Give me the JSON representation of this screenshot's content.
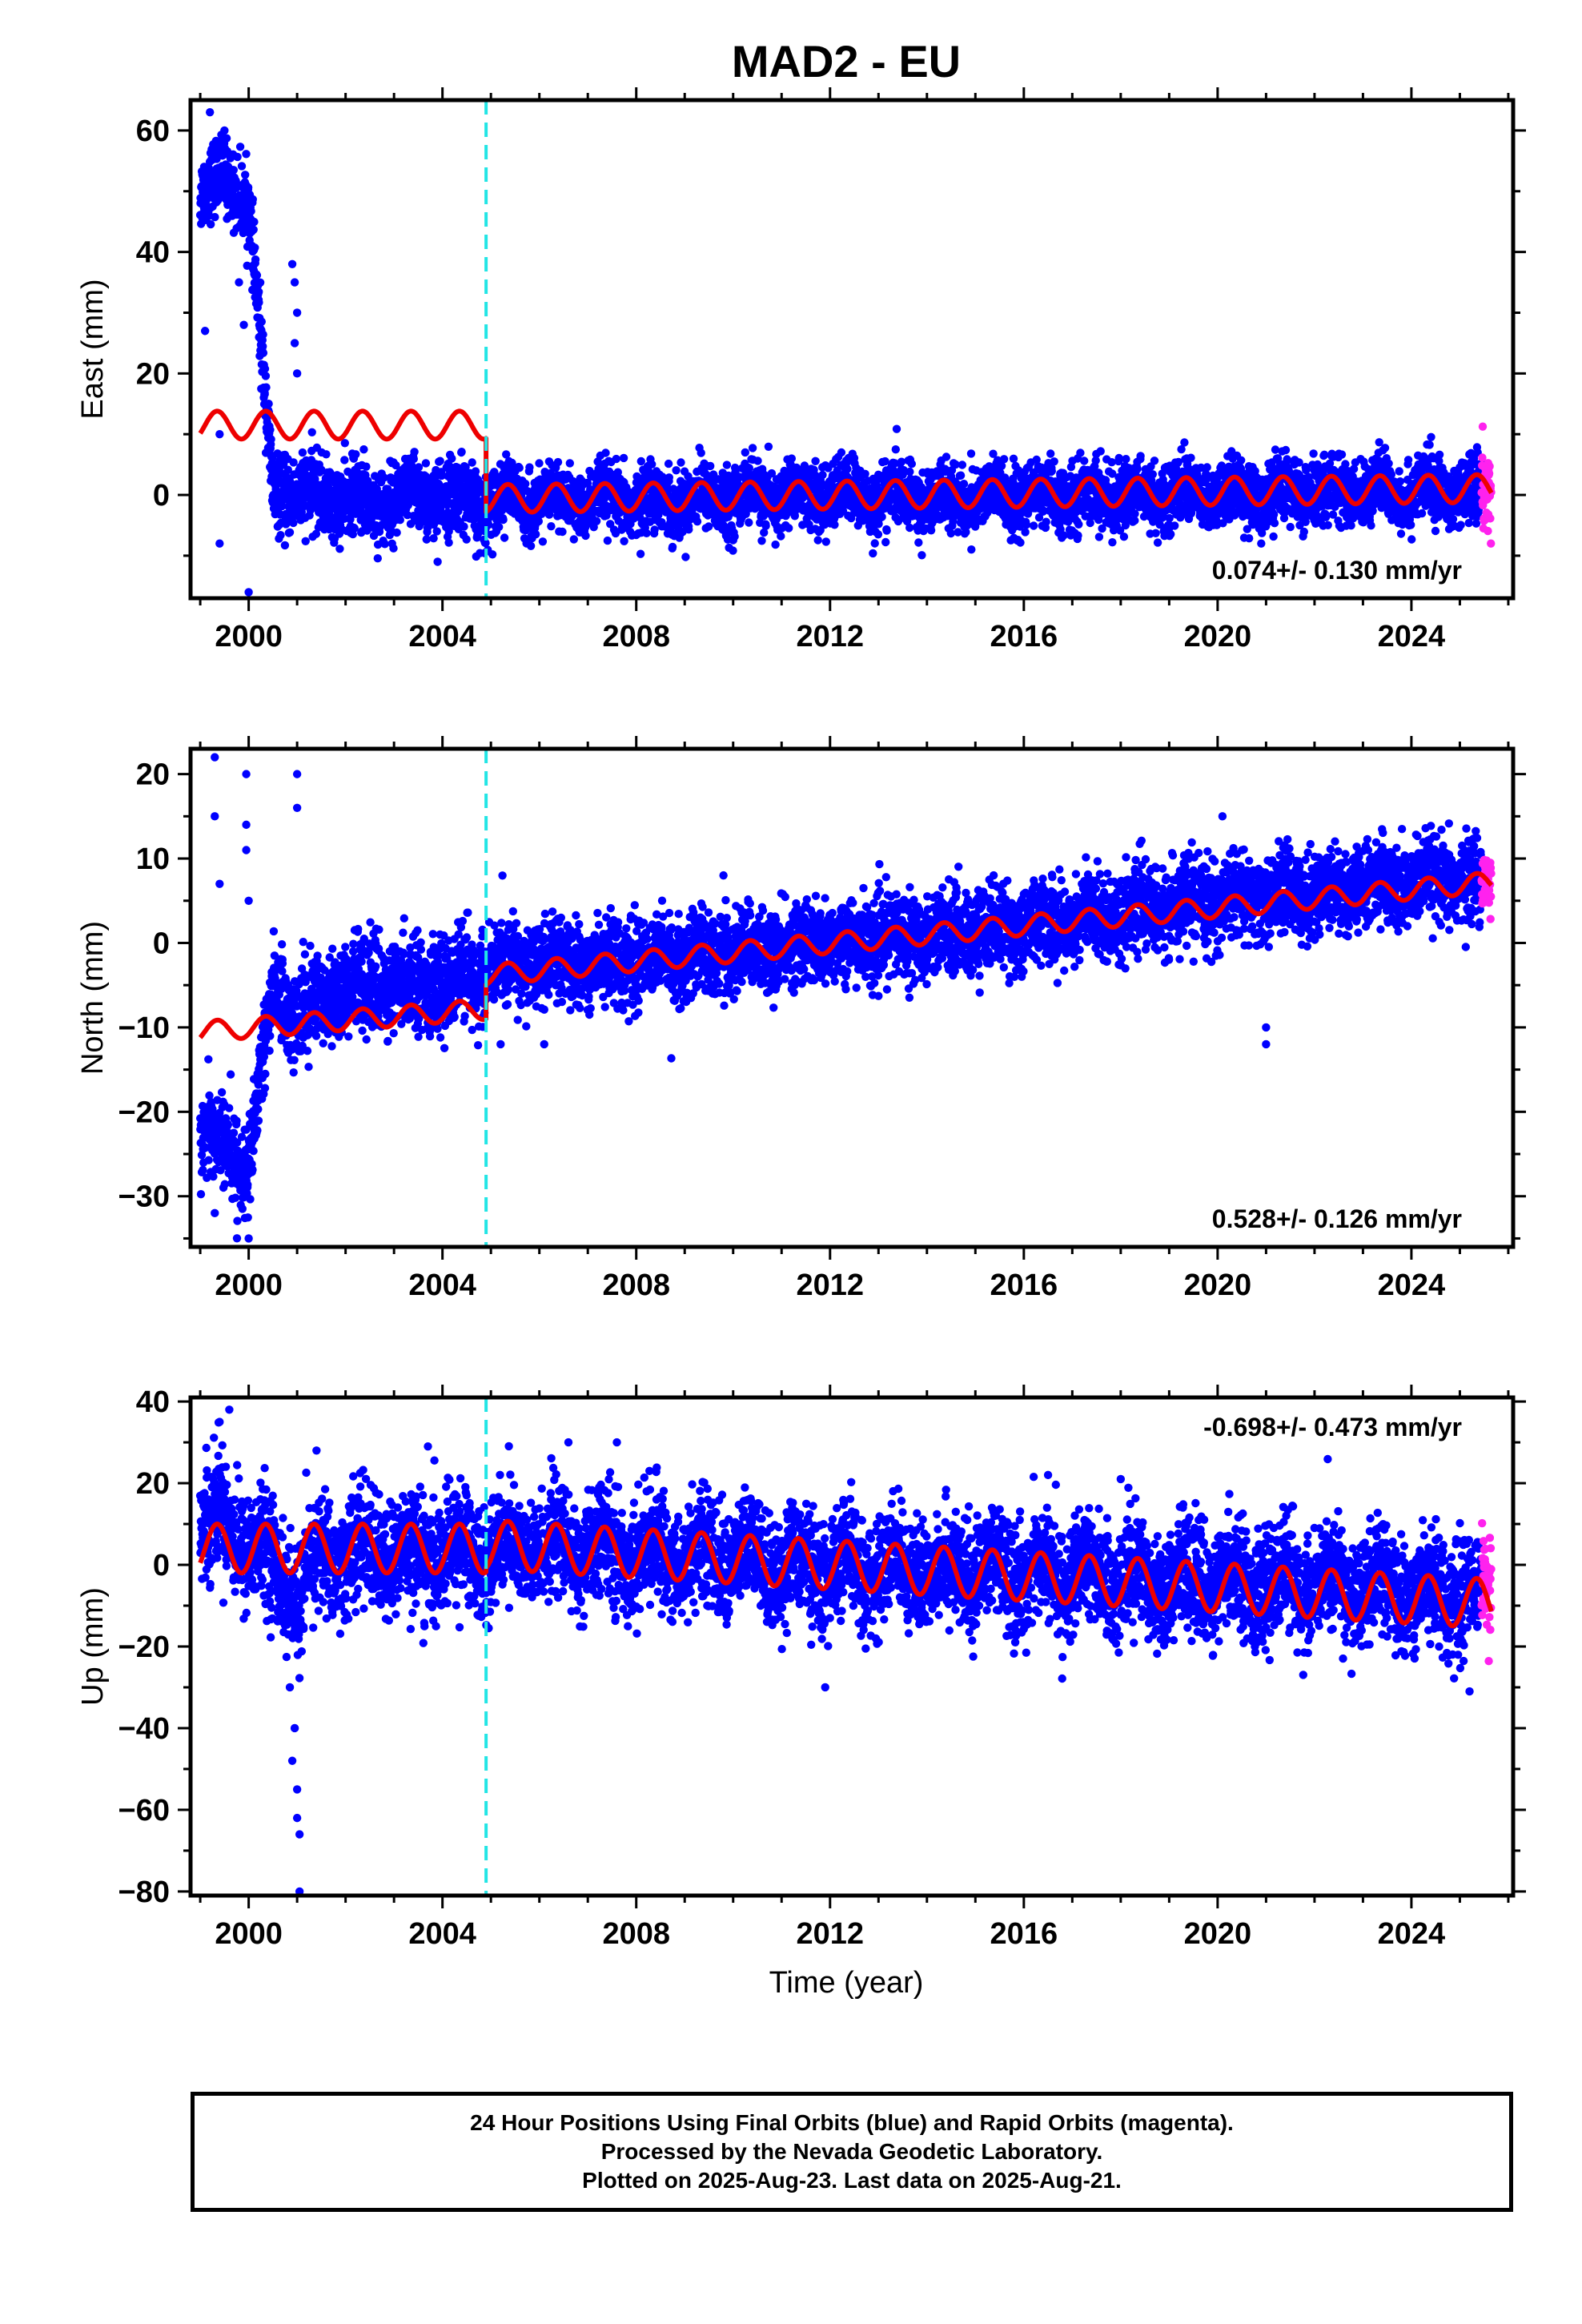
{
  "title": "MAD2 - EU",
  "xlabel": "Time (year)",
  "colors": {
    "final": "#0000ff",
    "rapid": "#ff22ee",
    "model": "#ee0000",
    "vline": "#22e5e5"
  },
  "footer": {
    "line1": "24 Hour Positions Using Final Orbits (blue) and Rapid Orbits (magenta).",
    "line2": "Processed by the Nevada Geodetic Laboratory.",
    "line3": "Plotted on 2025-Aug-23. Last data on 2025-Aug-21."
  },
  "chart_data": [
    {
      "type": "scatter",
      "title": "MAD2 - EU",
      "ylabel": "East (mm)",
      "xlim": [
        1998.8,
        2026.1
      ],
      "ylim": [
        -17,
        65
      ],
      "x_ticks": [
        2000,
        2004,
        2008,
        2012,
        2016,
        2020,
        2024
      ],
      "y_ticks": [
        0,
        20,
        40,
        60
      ],
      "event_line_x": 2004.9,
      "rate_label": "0.074+/- 0.130 mm/yr",
      "rate_position": "bottom-right",
      "segments": [
        {
          "x": [
            1999.0,
            1999.5,
            2000.0,
            2000.5,
            2001.0,
            2001.5,
            2002.0,
            2002.5,
            2003.0,
            2003.5,
            2004.0,
            2004.5,
            2004.9
          ],
          "y": [
            50,
            52,
            49,
            0,
            1,
            -1,
            0,
            -2,
            0,
            -1,
            0,
            -1,
            -2
          ],
          "spread": 3
        },
        {
          "x": [
            2004.9,
            2006,
            2008,
            2010,
            2012,
            2014,
            2016,
            2018,
            2020,
            2022,
            2024,
            2025.45
          ],
          "y": [
            -0.5,
            -1,
            -1,
            -0.5,
            0,
            -0.5,
            -0.5,
            0,
            0,
            0.5,
            0.5,
            0.5
          ],
          "spread": 2.6
        }
      ],
      "outliers": [
        {
          "x": 2000.9,
          "y": 38
        },
        {
          "x": 2000.95,
          "y": 35
        },
        {
          "x": 2001.0,
          "y": 30
        },
        {
          "x": 2000.95,
          "y": 25
        },
        {
          "x": 2001.0,
          "y": 20
        },
        {
          "x": 1999.1,
          "y": 27
        },
        {
          "x": 1999.2,
          "y": 63
        },
        {
          "x": 1999.5,
          "y": 60
        },
        {
          "x": 1999.9,
          "y": 28
        },
        {
          "x": 1999.8,
          "y": 35
        },
        {
          "x": 1999.4,
          "y": 10
        },
        {
          "x": 1999.4,
          "y": -8
        },
        {
          "x": 2000.0,
          "y": -16
        },
        {
          "x": 2003.9,
          "y": -11
        },
        {
          "x": 2020.9,
          "y": -8
        }
      ],
      "rapid": {
        "x_start": 2025.45,
        "x_end": 2025.65,
        "y_center": 0,
        "spread": 4,
        "count": 45
      },
      "model": {
        "segments": [
          {
            "x_start": 1999.0,
            "x_end": 2004.9,
            "offset": 11.5,
            "slope": 0,
            "amplitude": 2.3
          },
          {
            "x_start": 2004.9,
            "x_end": 2025.65,
            "offset": -0.6,
            "slope": 0.08,
            "amplitude": 2.3
          }
        ]
      }
    },
    {
      "type": "scatter",
      "ylabel": "North (mm)",
      "xlim": [
        1998.8,
        2026.1
      ],
      "ylim": [
        -36,
        23
      ],
      "x_ticks": [
        2000,
        2004,
        2008,
        2012,
        2016,
        2020,
        2024
      ],
      "y_ticks": [
        -30,
        -20,
        -10,
        0,
        10,
        20
      ],
      "event_line_x": 2004.9,
      "rate_label": "0.528+/- 0.126 mm/yr",
      "rate_position": "bottom-right",
      "segments": [
        {
          "x": [
            1999.0,
            1999.5,
            2000.0,
            2000.5,
            2001.0,
            2001.5,
            2002.0,
            2002.5,
            2003.0,
            2003.5,
            2004.0,
            2004.5,
            2004.9
          ],
          "y": [
            -22,
            -24,
            -27,
            -5,
            -9,
            -6,
            -5,
            -5,
            -5,
            -5,
            -5,
            -4,
            -4
          ],
          "spread": 2.6
        },
        {
          "x": [
            2004.9,
            2006,
            2008,
            2010,
            2012,
            2014,
            2016,
            2018,
            2020,
            2022,
            2024,
            2025.45
          ],
          "y": [
            -3,
            -2.5,
            -2,
            -1,
            0,
            1,
            2,
            3.5,
            5,
            6,
            7,
            7.5
          ],
          "spread": 2.4
        }
      ],
      "outliers": [
        {
          "x": 1999.3,
          "y": 22
        },
        {
          "x": 1999.95,
          "y": 20
        },
        {
          "x": 2001.0,
          "y": 20
        },
        {
          "x": 1999.3,
          "y": 15
        },
        {
          "x": 1999.95,
          "y": 14
        },
        {
          "x": 1999.4,
          "y": 7
        },
        {
          "x": 1999.95,
          "y": 11
        },
        {
          "x": 2001.0,
          "y": 16
        },
        {
          "x": 2000.0,
          "y": 5
        },
        {
          "x": 2009.8,
          "y": 8
        },
        {
          "x": 2020.1,
          "y": 15
        },
        {
          "x": 2021.0,
          "y": -10
        },
        {
          "x": 2021.0,
          "y": -12
        },
        {
          "x": 2000.0,
          "y": -35
        },
        {
          "x": 1999.3,
          "y": -32
        },
        {
          "x": 2005.2,
          "y": -12
        },
        {
          "x": 2006.1,
          "y": -12
        }
      ],
      "rapid": {
        "x_start": 2025.45,
        "x_end": 2025.65,
        "y_center": 7,
        "spread": 2.2,
        "count": 45
      },
      "model": {
        "segments": [
          {
            "x_start": 1999.0,
            "x_end": 2004.9,
            "offset": -10.5,
            "slope": 0.45,
            "amplitude": 1.2
          },
          {
            "x_start": 2004.9,
            "x_end": 2025.65,
            "offset": -3.8,
            "slope": 0.53,
            "amplitude": 1.2
          }
        ]
      }
    },
    {
      "type": "scatter",
      "ylabel": "Up (mm)",
      "xlim": [
        1998.8,
        2026.1
      ],
      "ylim": [
        -81,
        41
      ],
      "x_ticks": [
        2000,
        2004,
        2008,
        2012,
        2016,
        2020,
        2024
      ],
      "y_ticks": [
        -80,
        -60,
        -40,
        -20,
        0,
        20,
        40
      ],
      "event_line_x": 2004.9,
      "rate_label": "-0.698+/- 0.473 mm/yr",
      "rate_position": "top-right",
      "segments": [
        {
          "x": [
            1999.0,
            1999.5,
            2000.0,
            2000.5,
            2001.0,
            2001.5,
            2002.0,
            2002.5,
            2003.0,
            2003.5,
            2004.0,
            2004.5,
            2004.9
          ],
          "y": [
            10,
            12,
            5,
            0,
            -8,
            2,
            3,
            3,
            3,
            2,
            3,
            3,
            3
          ],
          "spread": 7
        },
        {
          "x": [
            2004.9,
            2006,
            2008,
            2010,
            2012,
            2014,
            2016,
            2018,
            2020,
            2022,
            2024,
            2025.45
          ],
          "y": [
            4,
            4,
            3,
            2,
            -1,
            -1,
            -2,
            -3,
            -4,
            -5,
            -6,
            -7
          ],
          "spread": 6.5
        }
      ],
      "outliers": [
        {
          "x": 1999.6,
          "y": 38
        },
        {
          "x": 1999.4,
          "y": 35
        },
        {
          "x": 2001.05,
          "y": -80
        },
        {
          "x": 2001.05,
          "y": -66
        },
        {
          "x": 2001.0,
          "y": -62
        },
        {
          "x": 2001.0,
          "y": -55
        },
        {
          "x": 2000.9,
          "y": -48
        },
        {
          "x": 2000.95,
          "y": -40
        },
        {
          "x": 2000.85,
          "y": -30
        },
        {
          "x": 2006.6,
          "y": 30
        },
        {
          "x": 2007.6,
          "y": 30
        },
        {
          "x": 2003.7,
          "y": 29
        },
        {
          "x": 2011.9,
          "y": -30
        },
        {
          "x": 2001.4,
          "y": 28
        },
        {
          "x": 2016.5,
          "y": 22
        },
        {
          "x": 2018.0,
          "y": 21
        },
        {
          "x": 2025.2,
          "y": -31
        }
      ],
      "rapid": {
        "x_start": 2025.45,
        "x_end": 2025.65,
        "y_center": -3,
        "spread": 7,
        "count": 45
      },
      "model": {
        "segments": [
          {
            "x_start": 1999.0,
            "x_end": 2004.9,
            "offset": 4,
            "slope": 0,
            "amplitude": 6
          },
          {
            "x_start": 2004.9,
            "x_end": 2025.65,
            "offset": 5,
            "slope": -0.7,
            "amplitude": 6
          }
        ]
      }
    }
  ]
}
